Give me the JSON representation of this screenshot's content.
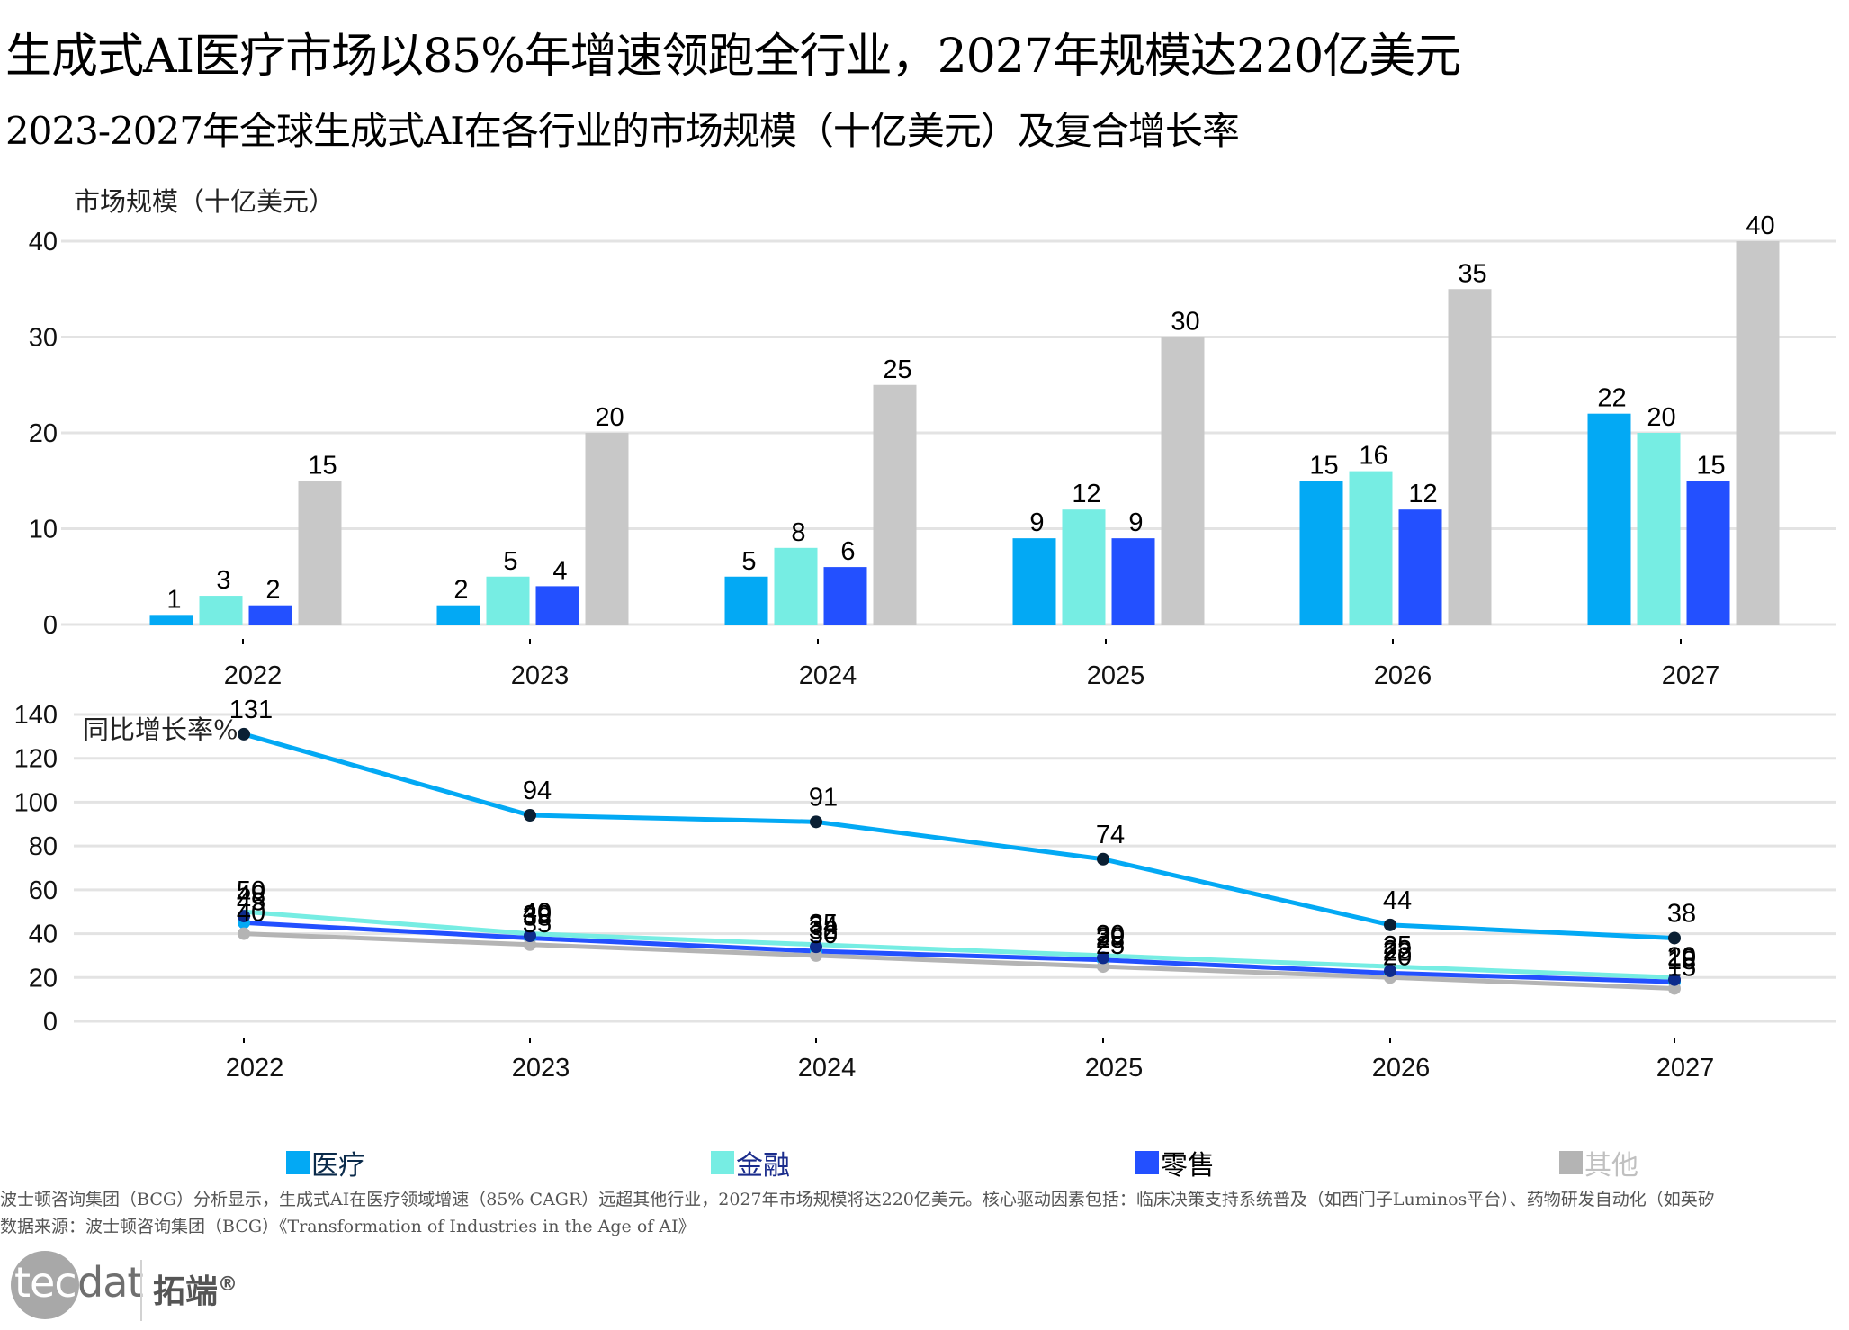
{
  "header": {
    "title": "生成式AI医疗市场以85%年增速领跑全行业，2027年规模达220亿美元",
    "subtitle": "2023-2027年全球生成式AI在各行业的市场规模（十亿美元）及复合增长率"
  },
  "colors": {
    "医疗": "#03a9f4",
    "金融": "#76ede3",
    "零售": "#2350ff",
    "其他": "#c8c8c8",
    "marker_dark": "#0a1f33",
    "marker_navy": "#0d2b8c",
    "gridline": "#e3e3e3"
  },
  "chart_data": [
    {
      "type": "bar",
      "ylabel": "市场规模（十亿美元）",
      "xlabel": "",
      "ylim": [
        0,
        40
      ],
      "yticks": [
        0,
        10,
        20,
        30,
        40
      ],
      "grid": true,
      "categories": [
        "2022",
        "2023",
        "2024",
        "2025",
        "2026",
        "2027"
      ],
      "series": [
        {
          "name": "医疗",
          "values": [
            1,
            2,
            5,
            9,
            15,
            22
          ]
        },
        {
          "name": "金融",
          "values": [
            3,
            5,
            8,
            12,
            16,
            20
          ]
        },
        {
          "name": "零售",
          "values": [
            2,
            4,
            6,
            9,
            12,
            15
          ]
        },
        {
          "name": "其他",
          "values": [
            15,
            20,
            25,
            30,
            35,
            40
          ]
        }
      ],
      "data_labels": true
    },
    {
      "type": "line",
      "ylabel": "同比增长率%",
      "xlabel": "",
      "ylim": [
        0,
        140
      ],
      "yticks": [
        0,
        20,
        40,
        60,
        80,
        100,
        120,
        140
      ],
      "grid": true,
      "categories": [
        "2022",
        "2023",
        "2024",
        "2025",
        "2026",
        "2027"
      ],
      "series": [
        {
          "name": "医疗",
          "values": [
            131,
            94,
            91,
            74,
            44,
            38
          ]
        },
        {
          "name": "金融",
          "values": [
            50,
            40,
            35,
            30,
            25,
            20
          ]
        },
        {
          "name": "零售",
          "values": [
            45,
            38,
            32,
            28,
            22,
            18
          ]
        },
        {
          "name": "其他",
          "values": [
            40,
            35,
            30,
            25,
            20,
            15
          ]
        },
        {
          "name": "",
          "values": [
            48,
            39,
            34,
            29,
            23,
            19
          ],
          "markers_only": true
        }
      ],
      "data_labels": true
    }
  ],
  "legend": {
    "position": "bottom",
    "items": [
      {
        "label": "医疗",
        "text_color": "#0a2a4a"
      },
      {
        "label": "金融",
        "text_color": "#1a2c8c"
      },
      {
        "label": "零售",
        "text_color": "#000000"
      },
      {
        "label": "其他",
        "text_color": "#c0c0c0"
      }
    ]
  },
  "footer": {
    "note": "波士顿咨询集团（BCG）分析显示，生成式AI在医疗领域增速（85% CAGR）远超其他行业，2027年市场规模将达220亿美元。核心驱动因素包括：临床决策支持系统普及（如西门子Luminos平台）、药物研发自动化（如英矽",
    "source": "数据来源：波士顿咨询集团（BCG）《Transformation of Industries in the Age of AI》",
    "logo_latin_1": "tec",
    "logo_latin_2": "dat",
    "logo_cn": "拓端",
    "logo_reg": "®"
  }
}
